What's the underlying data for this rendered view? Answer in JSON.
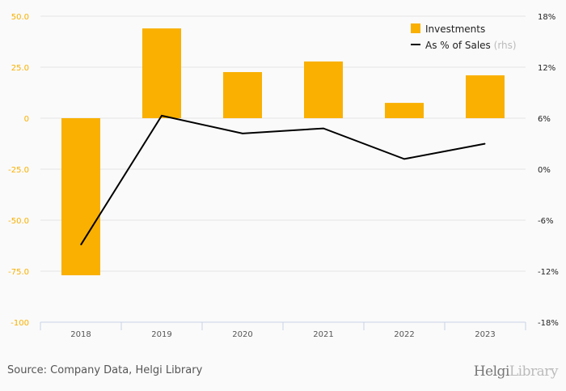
{
  "chart_data": {
    "type": "bar",
    "categories": [
      "2018",
      "2019",
      "2020",
      "2021",
      "2022",
      "2023"
    ],
    "series": [
      {
        "name": "Investments",
        "axis": "left",
        "type": "bar",
        "color": "#f9b000",
        "values": [
          -77.0,
          44.0,
          22.6,
          27.8,
          7.5,
          21.0
        ]
      },
      {
        "name": "As % of Sales",
        "axis": "right",
        "type": "line",
        "color": "#000000",
        "values": [
          -8.9,
          6.3,
          4.2,
          4.8,
          1.2,
          3.0
        ]
      }
    ],
    "left_axis": {
      "ylim": [
        -100,
        50
      ],
      "ticks": [
        50,
        25,
        0,
        -25,
        -50,
        -75,
        -100
      ],
      "tick_labels": [
        "50.0",
        "25.0",
        "0",
        "-25.0",
        "-50.0",
        "-75.0",
        "-100"
      ],
      "color": "#f9b000"
    },
    "right_axis": {
      "ylim": [
        -18,
        18
      ],
      "tick_labels": [
        "18%",
        "12%",
        "6%",
        "0%",
        "-6%",
        "-12%",
        "-18%"
      ]
    },
    "legend": {
      "position": "top-right",
      "items": [
        "Investments",
        "As % of Sales"
      ],
      "rhs_suffix": "(rhs)"
    },
    "grid": true
  },
  "footer": {
    "source": "Source: Company Data, Helgi Library",
    "logo_a": "Helgi",
    "logo_b": "Library"
  }
}
